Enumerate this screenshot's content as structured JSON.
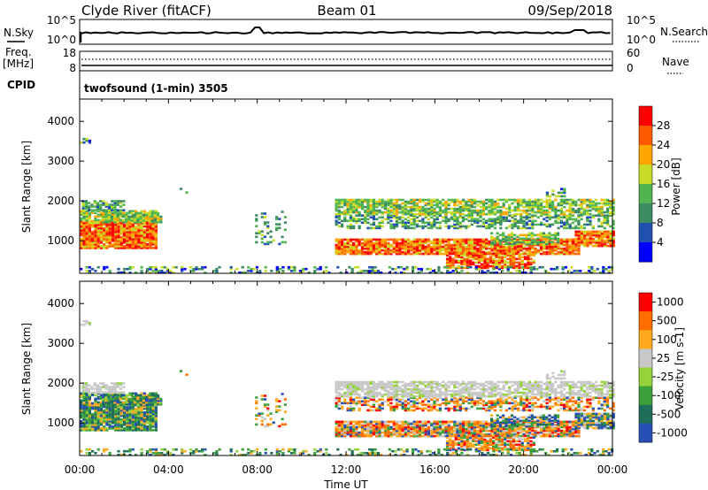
{
  "header": {
    "station": "Clyde River (fitACF)",
    "beam": "Beam 01",
    "date": "09/Sep/2018"
  },
  "noise_panel": {
    "left_label": "N.Sky",
    "right_label": "N.Search",
    "left_ticks": [
      "10^5",
      "10^0"
    ],
    "right_ticks": [
      "10^5",
      "10^0"
    ]
  },
  "freq_panel": {
    "left_label_line1": "Freq.",
    "left_label_line2": "[MHz]",
    "right_label": "Nave",
    "left_ticks": [
      "18",
      "8"
    ],
    "right_ticks": [
      "60",
      "0"
    ]
  },
  "cpid": {
    "label": "CPID",
    "value": "twofsound (1-min) 3505"
  },
  "colors": {
    "power_scale": [
      "#0000ff",
      "#2050b0",
      "#3c8c60",
      "#50b450",
      "#c8dc28",
      "#ffa500",
      "#ff5a00",
      "#ff0000"
    ],
    "velocity_scale": [
      "#2850b4",
      "#1e6e5a",
      "#3ca03c",
      "#96d23c",
      "#c8c8c8",
      "#ffaa1e",
      "#ff6e00",
      "#ff0000"
    ]
  },
  "chart_data": [
    {
      "type": "heatmap",
      "name": "power",
      "ylabel": "Slant Range [km]",
      "yticks": [
        "4000",
        "3000",
        "2000",
        "1000"
      ],
      "colorbar_label": "Power [dB]",
      "colorbar_ticks": [
        "28",
        "24",
        "20",
        "16",
        "12",
        "8",
        "4"
      ],
      "xlim_hours": [
        0,
        24
      ],
      "ylim_km": [
        180,
        4560
      ]
    },
    {
      "type": "heatmap",
      "name": "velocity",
      "ylabel": "Slant Range [km]",
      "yticks": [
        "4000",
        "3000",
        "2000",
        "1000"
      ],
      "xlabel": "Time UT",
      "xticks": [
        "00:00",
        "04:00",
        "08:00",
        "12:00",
        "16:00",
        "20:00",
        "00:00"
      ],
      "colorbar_label": "Velocity [m s-1]",
      "colorbar_ticks": [
        "1000",
        "500",
        "100",
        "25",
        "-25",
        "-100",
        "-500",
        "-1000"
      ],
      "xlim_hours": [
        0,
        24
      ],
      "ylim_km": [
        180,
        4560
      ]
    }
  ]
}
